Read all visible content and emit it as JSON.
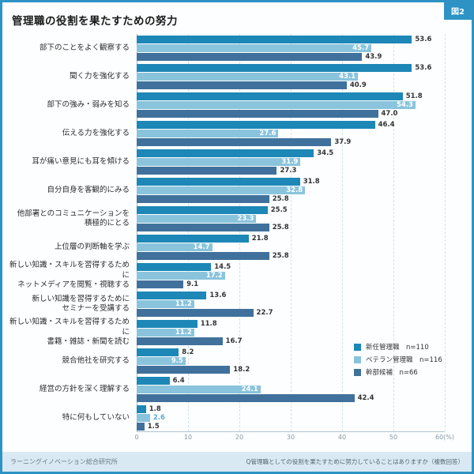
{
  "figure_label": "図2",
  "title": "管理職の役割を果たすための努力",
  "footer_left": "ラーニングイノベーション総合研究所",
  "footer_right": "Q管理職としての役割を果たすために努力していることはありますか（複数回答）",
  "colors": {
    "series1": "#1d87b7",
    "series2": "#8ac4dc",
    "series3": "#40719c",
    "frame": "#2d93c5",
    "grid": "#d3e2ea",
    "value_dark": "#333333",
    "value_light_outside": "#5fa9cc"
  },
  "chart_data": {
    "type": "bar",
    "orientation": "horizontal",
    "xlim": [
      0,
      60
    ],
    "tick_labels": [
      "0",
      "10",
      "20",
      "30",
      "40",
      "50",
      "60(%)"
    ],
    "grid": true,
    "legend_position": "right-middle",
    "categories": [
      "部下のことをよく観察する",
      "聞く力を強化する",
      "部下の強み・弱みを知る",
      "伝える力を強化する",
      "耳が痛い意見にも耳を傾ける",
      "自分自身を客観的にみる",
      "他部署とのコミュニケーションを\n積極的にとる",
      "上位層の判断軸を学ぶ",
      "新しい知識・スキルを習得するために\nネットメディアを閲覧・視聴する",
      "新しい知識を習得するために\nセミナーを受講する",
      "新しい知識・スキルを習得するために\n書籍・雑誌・新聞を読む",
      "競合他社を研究する",
      "経営の方針を深く理解する",
      "特に何もしていない"
    ],
    "series": [
      {
        "name": "新任管理職",
        "n": "n=110",
        "values": [
          "53.6",
          "53.6",
          "51.8",
          "46.4",
          "34.5",
          "31.8",
          "25.5",
          "21.8",
          "14.5",
          "13.6",
          "11.8",
          "8.2",
          "6.4",
          "1.8"
        ]
      },
      {
        "name": "ベテラン管理職",
        "n": "n=116",
        "values": [
          "45.7",
          "43.1",
          "54.3",
          "27.6",
          "31.9",
          "32.8",
          "23.3",
          "14.7",
          "17.2",
          "11.2",
          "11.2",
          "9.5",
          "24.1",
          "2.6"
        ]
      },
      {
        "name": "幹部候補",
        "n": "n=66",
        "values": [
          "43.9",
          "40.9",
          "47.0",
          "37.9",
          "27.3",
          "25.8",
          "25.8",
          "25.8",
          "9.1",
          "22.7",
          "16.7",
          "18.2",
          "42.4",
          "1.5"
        ]
      }
    ]
  }
}
